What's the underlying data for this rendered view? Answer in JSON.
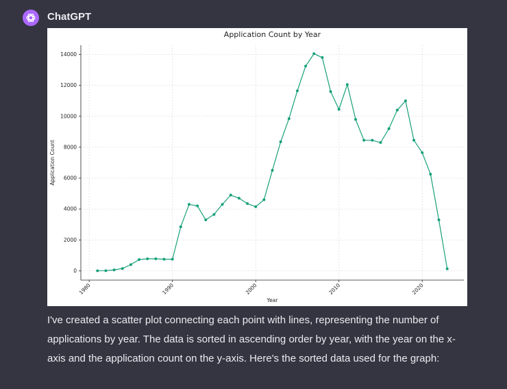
{
  "message": {
    "author": "ChatGPT",
    "body": "I've created a scatter plot connecting each point with lines, representing the number of applications by year. The data is sorted in ascending order by year, with the year on the x-axis and the application count on the y-axis. Here's the sorted data used for the graph:"
  },
  "icons": {
    "avatar": "openai-logo-icon"
  },
  "colors": {
    "background": "#343541",
    "avatar": "#ab68ff",
    "line": "#17a079"
  },
  "chart_data": {
    "type": "line",
    "title": "Application Count by Year",
    "xlabel": "Year",
    "ylabel": "Application Count",
    "xlim": [
      1979,
      2025
    ],
    "ylim": [
      -600,
      14600
    ],
    "xticks": [
      1980,
      1990,
      2000,
      2010,
      2020
    ],
    "yticks": [
      0,
      2000,
      4000,
      6000,
      8000,
      10000,
      12000,
      14000
    ],
    "grid": true,
    "markers": true,
    "series": [
      {
        "x": [
          1981,
          1982,
          1983,
          1984,
          1985,
          1986,
          1987,
          1988,
          1989,
          1990,
          1991,
          1992,
          1993,
          1994,
          1995,
          1996,
          1997,
          1998,
          1999,
          2000,
          2001,
          2002,
          2003,
          2004,
          2005,
          2006,
          2007,
          2008,
          2009,
          2010,
          2011,
          2012,
          2013,
          2014,
          2015,
          2016,
          2017,
          2018,
          2019,
          2020,
          2021,
          2022,
          2023
        ],
        "values": [
          5,
          10,
          60,
          150,
          400,
          730,
          780,
          780,
          750,
          750,
          2850,
          4300,
          4200,
          3300,
          3650,
          4300,
          4900,
          4700,
          4350,
          4150,
          4600,
          6500,
          8350,
          9850,
          11650,
          13250,
          14050,
          13800,
          11600,
          10450,
          12050,
          9800,
          8450,
          8450,
          8300,
          9200,
          10400,
          11000,
          8450,
          7650,
          6250,
          3300,
          130
        ]
      }
    ]
  }
}
